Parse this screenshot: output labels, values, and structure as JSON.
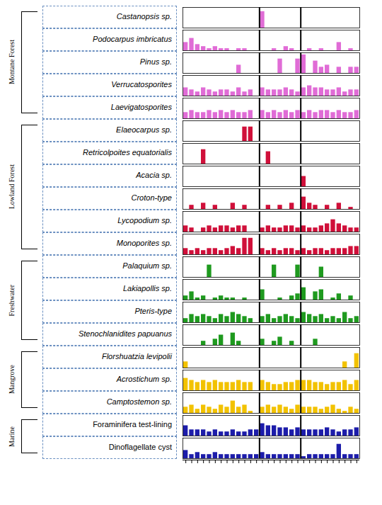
{
  "chart_data": {
    "type": "bar",
    "tick_labels": false,
    "categories": [
      null,
      null,
      null,
      null,
      null,
      null,
      null,
      null,
      null,
      null,
      null,
      null,
      null,
      null,
      null,
      null,
      null,
      null,
      null,
      null,
      null,
      null,
      null,
      null,
      null,
      null,
      null,
      null,
      null,
      null
    ],
    "ylim": [
      0,
      10
    ],
    "zone_boundaries": [
      13,
      20
    ],
    "groups": [
      {
        "name": "Montane Forest",
        "color": "#e06cd6",
        "series": [
          {
            "name": "Castanopsis sp.",
            "values": [
              0,
              0,
              0,
              0,
              0,
              0,
              0,
              0,
              0,
              0,
              0,
              0,
              0,
              8,
              0,
              0,
              0,
              0,
              0,
              0,
              0,
              0,
              0,
              0,
              0,
              0,
              0,
              0,
              0,
              0
            ]
          },
          {
            "name": "Podocarpus imbricatus",
            "values": [
              4,
              6,
              3,
              2,
              1,
              2,
              1,
              1,
              0,
              1,
              1,
              0,
              0,
              0,
              0,
              1,
              0,
              2,
              1,
              0,
              0,
              1,
              0,
              1,
              0,
              0,
              4,
              0,
              1,
              0
            ]
          },
          {
            "name": "Pinus sp.",
            "values": [
              0,
              0,
              0,
              0,
              0,
              0,
              0,
              0,
              0,
              4,
              0,
              0,
              0,
              0,
              0,
              0,
              7,
              0,
              0,
              7,
              9,
              0,
              6,
              3,
              4,
              0,
              3,
              0,
              3,
              3
            ]
          },
          {
            "name": "Verrucatosporites",
            "values": [
              4,
              3,
              2,
              4,
              3,
              2,
              3,
              3,
              2,
              4,
              2,
              3,
              0,
              4,
              3,
              3,
              3,
              4,
              3,
              2,
              4,
              5,
              4,
              4,
              3,
              3,
              4,
              2,
              3,
              3
            ]
          },
          {
            "name": "Laevigatosporites",
            "values": [
              3,
              4,
              3,
              3,
              4,
              3,
              4,
              3,
              4,
              3,
              3,
              4,
              0,
              4,
              3,
              4,
              3,
              4,
              3,
              4,
              3,
              4,
              3,
              4,
              4,
              3,
              4,
              3,
              3,
              4
            ]
          }
        ]
      },
      {
        "name": "Lowland Forest",
        "color": "#d0103a",
        "series": [
          {
            "name": "Elaeocarpus sp.",
            "values": [
              0,
              0,
              0,
              0,
              0,
              0,
              0,
              0,
              0,
              0,
              7,
              7,
              0,
              0,
              0,
              0,
              0,
              0,
              0,
              0,
              0,
              0,
              0,
              0,
              0,
              0,
              0,
              0,
              0,
              0
            ]
          },
          {
            "name": "Retricolpoites equatorialis",
            "values": [
              0,
              0,
              0,
              7,
              0,
              0,
              0,
              0,
              0,
              0,
              0,
              0,
              0,
              0,
              6,
              0,
              0,
              0,
              0,
              0,
              0,
              0,
              0,
              0,
              0,
              0,
              0,
              0,
              0,
              0
            ]
          },
          {
            "name": "Acacia sp.",
            "values": [
              0,
              0,
              0,
              0,
              0,
              0,
              0,
              0,
              0,
              0,
              0,
              0,
              0,
              0,
              0,
              0,
              0,
              0,
              0,
              0,
              5,
              0,
              0,
              0,
              0,
              0,
              0,
              0,
              0,
              0
            ]
          },
          {
            "name": "Croton-type",
            "values": [
              0,
              2,
              0,
              3,
              0,
              2,
              0,
              0,
              3,
              0,
              2,
              0,
              0,
              0,
              2,
              0,
              2,
              0,
              3,
              0,
              6,
              3,
              2,
              0,
              2,
              0,
              3,
              0,
              1,
              0
            ]
          },
          {
            "name": "Lycopodium sp.",
            "values": [
              3,
              2,
              0,
              2,
              3,
              2,
              3,
              3,
              2,
              3,
              3,
              0,
              0,
              2,
              3,
              2,
              2,
              3,
              3,
              2,
              3,
              2,
              2,
              3,
              4,
              6,
              4,
              3,
              2,
              2
            ]
          },
          {
            "name": "Monoporites sp.",
            "values": [
              3,
              2,
              3,
              2,
              3,
              3,
              2,
              3,
              4,
              3,
              8,
              8,
              0,
              3,
              2,
              3,
              2,
              3,
              3,
              2,
              3,
              2,
              3,
              3,
              2,
              3,
              3,
              3,
              4,
              4
            ]
          }
        ]
      },
      {
        "name": "Freshwater",
        "color": "#1f9a1f",
        "series": [
          {
            "name": "Palaquium sp.",
            "values": [
              0,
              0,
              0,
              0,
              6,
              0,
              0,
              0,
              0,
              0,
              0,
              0,
              0,
              0,
              0,
              6,
              0,
              0,
              0,
              6,
              0,
              0,
              0,
              5,
              0,
              0,
              0,
              0,
              0,
              0
            ]
          },
          {
            "name": "Lakiapollis sp.",
            "values": [
              2,
              4,
              1,
              2,
              0,
              1,
              2,
              1,
              1,
              0,
              1,
              0,
              0,
              5,
              0,
              0,
              1,
              0,
              2,
              3,
              6,
              0,
              4,
              5,
              0,
              1,
              3,
              0,
              2,
              0
            ]
          },
          {
            "name": "Pteris-type",
            "values": [
              2,
              4,
              3,
              4,
              3,
              2,
              4,
              3,
              5,
              4,
              3,
              2,
              0,
              3,
              4,
              2,
              3,
              4,
              3,
              2,
              5,
              4,
              3,
              4,
              2,
              3,
              2,
              5,
              2,
              3
            ]
          },
          {
            "name": "Stenochlanidites papuanus",
            "values": [
              0,
              0,
              0,
              2,
              0,
              3,
              5,
              0,
              6,
              2,
              0,
              0,
              0,
              3,
              0,
              2,
              4,
              0,
              2,
              0,
              0,
              0,
              3,
              0,
              0,
              0,
              0,
              0,
              0,
              0
            ]
          }
        ]
      },
      {
        "name": "Mangrove",
        "color": "#f2c200",
        "series": [
          {
            "name": "Florshuatzia levipolii",
            "values": [
              3,
              0,
              0,
              0,
              0,
              0,
              0,
              0,
              0,
              0,
              0,
              0,
              0,
              0,
              0,
              0,
              0,
              0,
              0,
              0,
              0,
              0,
              0,
              0,
              0,
              0,
              0,
              3,
              0,
              7
            ]
          },
          {
            "name": "Acrostichum sp.",
            "values": [
              6,
              5,
              4,
              5,
              4,
              5,
              4,
              4,
              4,
              5,
              4,
              4,
              0,
              5,
              4,
              3,
              3,
              4,
              4,
              5,
              5,
              5,
              4,
              4,
              3,
              4,
              4,
              5,
              3,
              5
            ]
          },
          {
            "name": "Camptostemon sp.",
            "values": [
              3,
              4,
              2,
              4,
              3,
              2,
              4,
              3,
              6,
              3,
              4,
              1,
              0,
              3,
              4,
              3,
              4,
              3,
              2,
              4,
              3,
              3,
              3,
              2,
              3,
              4,
              2,
              1,
              3,
              2
            ]
          }
        ]
      },
      {
        "name": "Marine",
        "color": "#1c1caa",
        "series": [
          {
            "name": "Foraminifera test-lining",
            "values": [
              5,
              3,
              3,
              3,
              2,
              3,
              2,
              2,
              3,
              2,
              2,
              3,
              3,
              6,
              5,
              5,
              4,
              4,
              3,
              4,
              3,
              3,
              3,
              3,
              4,
              3,
              2,
              3,
              3,
              4
            ]
          },
          {
            "name": "Dinoflagellate cyst",
            "values": [
              4,
              2,
              3,
              2,
              2,
              3,
              2,
              2,
              2,
              2,
              2,
              2,
              2,
              3,
              2,
              2,
              2,
              2,
              2,
              2,
              1,
              2,
              2,
              2,
              2,
              2,
              7,
              2,
              2,
              2
            ]
          }
        ]
      }
    ]
  }
}
